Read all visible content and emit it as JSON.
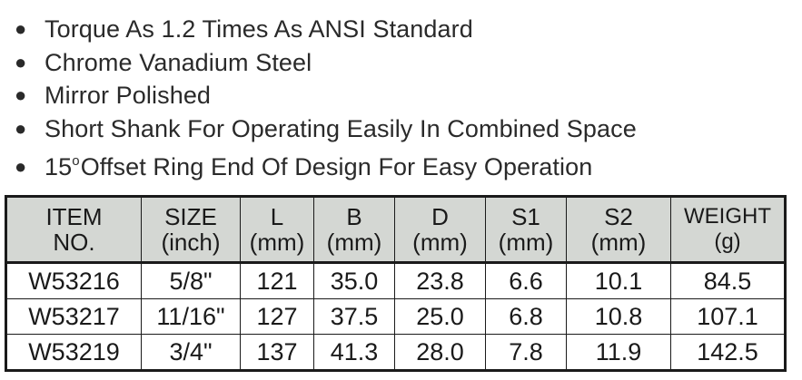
{
  "features": [
    {
      "text": "Torque As 1.2 Times As ANSI Standard"
    },
    {
      "text": "Chrome Vanadium Steel"
    },
    {
      "text": "Mirror Polished"
    },
    {
      "text": "Short Shank For Operating Easily In Combined Space"
    },
    {
      "pre": "15",
      "sup": "o",
      "text": "Offset Ring End Of Design For Easy Operation"
    }
  ],
  "table": {
    "headers": [
      {
        "line1": "ITEM",
        "line2": "NO."
      },
      {
        "line1": "SIZE",
        "line2": "(inch)"
      },
      {
        "line1": "L",
        "line2": "(mm)"
      },
      {
        "line1": "B",
        "line2": "(mm)"
      },
      {
        "line1": "D",
        "line2": "(mm)"
      },
      {
        "line1": "S1",
        "line2": "(mm)"
      },
      {
        "line1": "S2",
        "line2": "(mm)"
      },
      {
        "line1": "WEIGHT",
        "line2": "(g)"
      }
    ],
    "rows": [
      [
        "W53216",
        "5/8\"",
        "121",
        "35.0",
        "23.8",
        "6.6",
        "10.1",
        "84.5"
      ],
      [
        "W53217",
        "11/16\"",
        "127",
        "37.5",
        "25.0",
        "6.8",
        "10.8",
        "107.1"
      ],
      [
        "W53219",
        "3/4\"",
        "137",
        "41.3",
        "28.0",
        "7.8",
        "11.9",
        "142.5"
      ]
    ]
  },
  "colors": {
    "header_bg": "#d4d7d3",
    "text": "#2a2a2a",
    "border": "#1a1a1a"
  }
}
